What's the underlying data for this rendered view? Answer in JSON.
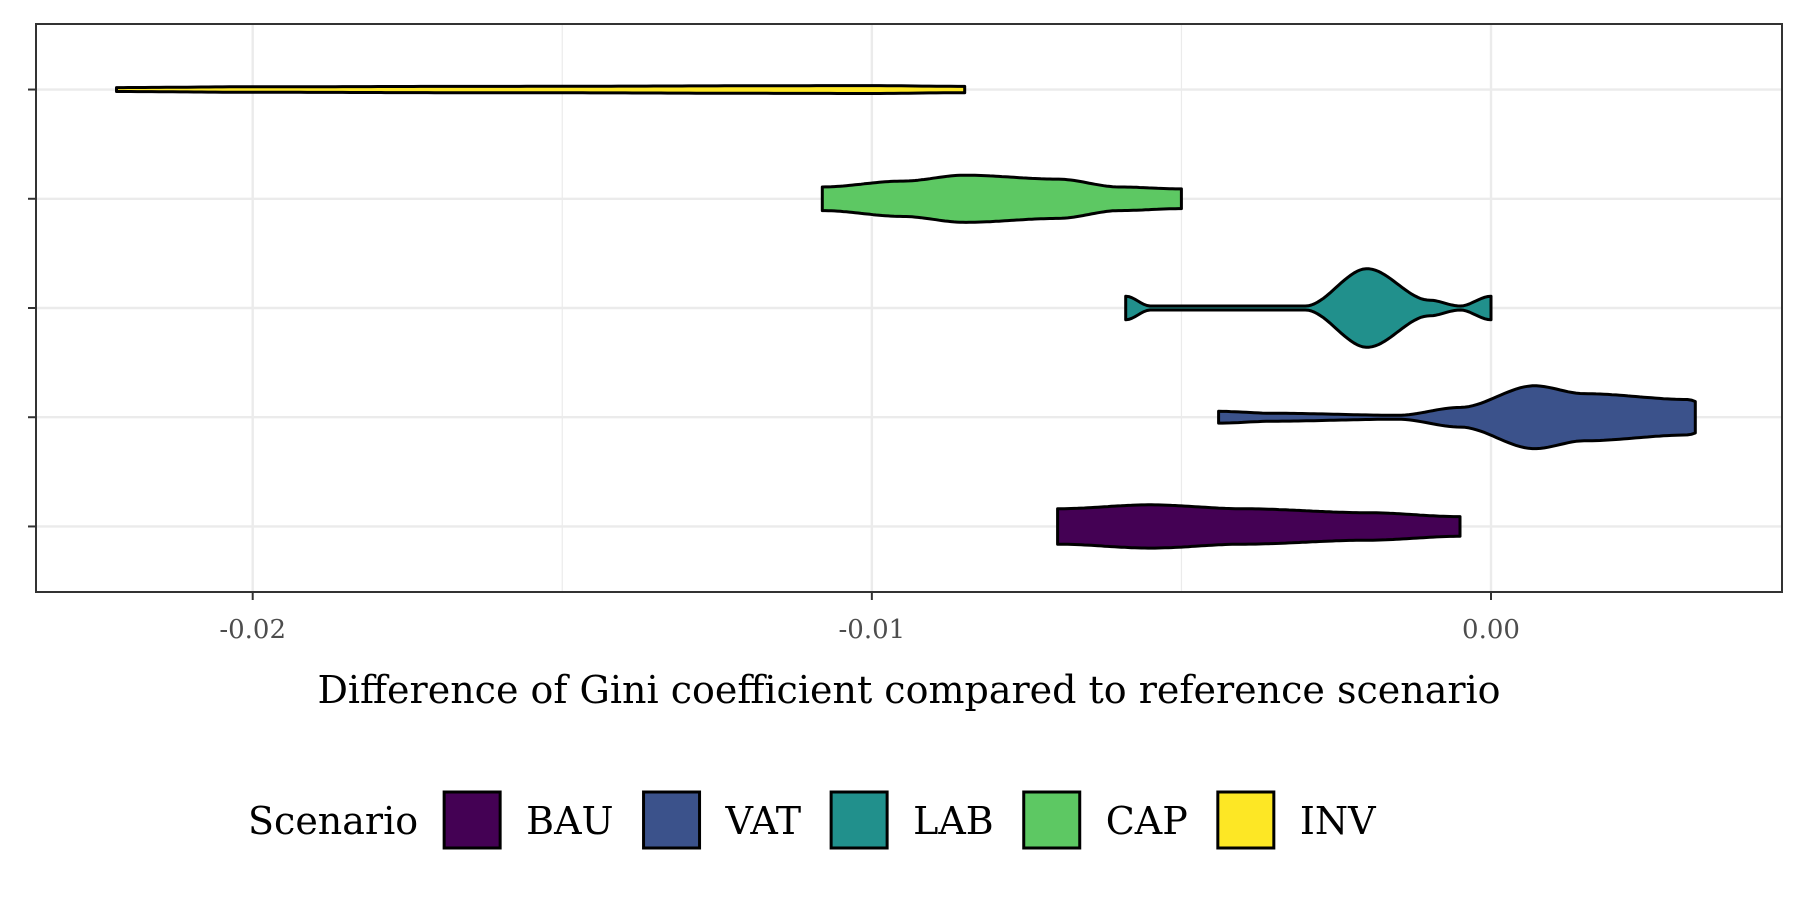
{
  "chart_data": {
    "type": "violin",
    "orientation": "horizontal",
    "xlabel": "Difference of Gini coefficient compared to reference scenario",
    "xlim": [
      -0.0235,
      0.0047
    ],
    "x_ticks": [
      -0.02,
      -0.01,
      0.0
    ],
    "x_tick_labels": [
      "-0.02",
      "-0.01",
      "0.00"
    ],
    "grid": true,
    "legend": {
      "title": "Scenario",
      "position": "bottom"
    },
    "series": [
      {
        "name": "BAU",
        "color": "#440154",
        "profile": [
          [
            -0.007,
            0.45
          ],
          [
            -0.0055,
            0.55
          ],
          [
            -0.004,
            0.45
          ],
          [
            -0.002,
            0.35
          ],
          [
            -0.0005,
            0.25
          ]
        ]
      },
      {
        "name": "VAT",
        "color": "#3B528B",
        "profile": [
          [
            -0.0044,
            0.15
          ],
          [
            -0.0035,
            0.1
          ],
          [
            -0.0015,
            0.05
          ],
          [
            -0.0005,
            0.25
          ],
          [
            0.0007,
            0.8
          ],
          [
            0.0015,
            0.6
          ],
          [
            0.0032,
            0.45
          ],
          [
            0.0033,
            0.4
          ]
        ]
      },
      {
        "name": "LAB",
        "color": "#21908C",
        "profile": [
          [
            -0.0059,
            0.3
          ],
          [
            -0.0055,
            0.05
          ],
          [
            -0.003,
            0.05
          ],
          [
            -0.002,
            1.0
          ],
          [
            -0.001,
            0.2
          ],
          [
            -0.0005,
            0.05
          ],
          [
            0.0,
            0.3
          ]
        ]
      },
      {
        "name": "CAP",
        "color": "#5DC863",
        "profile": [
          [
            -0.0108,
            0.3
          ],
          [
            -0.0095,
            0.45
          ],
          [
            -0.0085,
            0.6
          ],
          [
            -0.007,
            0.5
          ],
          [
            -0.006,
            0.3
          ],
          [
            -0.005,
            0.25
          ]
        ]
      },
      {
        "name": "INV",
        "color": "#FDE725",
        "profile": [
          [
            -0.0222,
            0.05
          ],
          [
            -0.02,
            0.07
          ],
          [
            -0.0165,
            0.08
          ],
          [
            -0.01,
            0.1
          ],
          [
            -0.0085,
            0.08
          ]
        ]
      }
    ]
  }
}
